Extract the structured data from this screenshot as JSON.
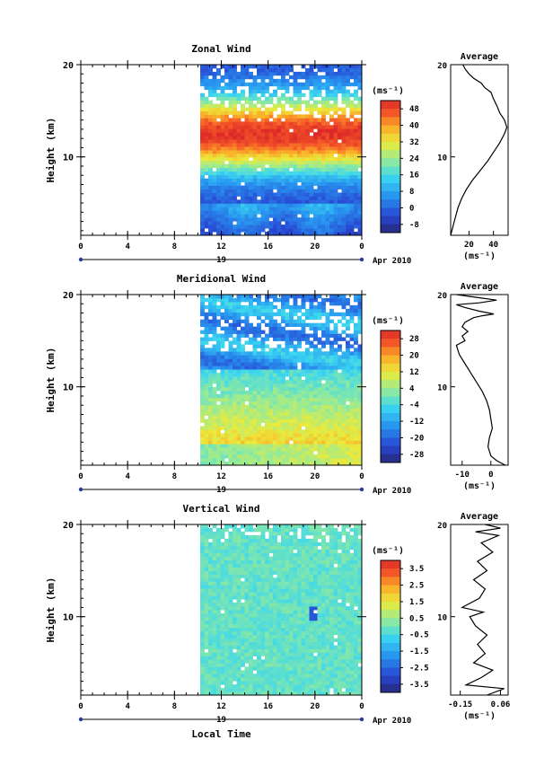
{
  "chart_data": [
    {
      "type": "heatmap",
      "title": "Zonal Wind",
      "ylabel": "Height (km)",
      "units": "(ms⁻¹)",
      "y_ticks": [
        "20",
        "10"
      ],
      "x_ticks": [
        "0",
        "4",
        "8",
        "12",
        "16",
        "20",
        "0"
      ],
      "date_label": "19",
      "month_label": "Apr 2010",
      "xlim": [
        0,
        24
      ],
      "ylim": [
        1.5,
        20
      ],
      "colorbar_ticks": [
        "48",
        "40",
        "32",
        "24",
        "16",
        "8",
        "0",
        "-8"
      ],
      "colorbar_range": [
        -12,
        52
      ],
      "data_start_hour": 10.2,
      "profile": {
        "title": "Average",
        "y_ticks": [
          "20",
          "10"
        ],
        "x_ticks": [
          "20",
          "40"
        ],
        "xlabel": "(ms⁻¹)",
        "xlim": [
          5,
          52
        ],
        "points": [
          [
            5,
            1.5
          ],
          [
            7,
            2.5
          ],
          [
            9,
            3.5
          ],
          [
            11,
            4.5
          ],
          [
            14,
            5.5
          ],
          [
            18,
            6.5
          ],
          [
            23,
            7.5
          ],
          [
            29,
            8.5
          ],
          [
            35,
            9.5
          ],
          [
            40,
            10.5
          ],
          [
            45,
            11.5
          ],
          [
            49,
            12.5
          ],
          [
            51,
            13.2
          ],
          [
            49,
            14
          ],
          [
            45,
            14.8
          ],
          [
            43,
            15.5
          ],
          [
            40,
            16.3
          ],
          [
            38,
            17
          ],
          [
            33,
            17.5
          ],
          [
            30,
            18
          ],
          [
            24,
            18.5
          ],
          [
            20,
            19
          ],
          [
            17,
            19.5
          ],
          [
            15,
            20
          ]
        ]
      }
    },
    {
      "type": "heatmap",
      "title": "Meridional Wind",
      "ylabel": "Height (km)",
      "units": "(ms⁻¹)",
      "y_ticks": [
        "20",
        "10"
      ],
      "x_ticks": [
        "0",
        "4",
        "8",
        "12",
        "16",
        "20",
        "0"
      ],
      "date_label": "19",
      "month_label": "Apr 2010",
      "xlim": [
        0,
        24
      ],
      "ylim": [
        1.5,
        20
      ],
      "colorbar_ticks": [
        "28",
        "20",
        "12",
        "4",
        "-4",
        "-12",
        "-20",
        "-28"
      ],
      "colorbar_range": [
        -32,
        32
      ],
      "data_start_hour": 10.2,
      "profile": {
        "title": "Average",
        "y_ticks": [
          "20",
          "10"
        ],
        "x_ticks": [
          "-10",
          "0"
        ],
        "xlabel": "(ms⁻¹)",
        "xlim": [
          -14,
          6
        ],
        "points": [
          [
            5,
            1.5
          ],
          [
            2,
            2
          ],
          [
            0,
            2.5
          ],
          [
            -1,
            3.5
          ],
          [
            -0.5,
            4.5
          ],
          [
            0.5,
            5.5
          ],
          [
            0,
            6.5
          ],
          [
            -0.5,
            7.5
          ],
          [
            -1.5,
            8.5
          ],
          [
            -3,
            9.5
          ],
          [
            -5,
            10.5
          ],
          [
            -7,
            11.5
          ],
          [
            -9,
            12.5
          ],
          [
            -11,
            13.5
          ],
          [
            -12,
            14.5
          ],
          [
            -9,
            15
          ],
          [
            -10,
            15.5
          ],
          [
            -8,
            16
          ],
          [
            -10,
            16.5
          ],
          [
            -9,
            17
          ],
          [
            -6,
            17.5
          ],
          [
            -3,
            17.7
          ],
          [
            1,
            17.9
          ],
          [
            -4,
            18.2
          ],
          [
            -9,
            18.6
          ],
          [
            -12,
            18.9
          ],
          [
            -4,
            19.1
          ],
          [
            2,
            19.4
          ],
          [
            -5,
            19.7
          ],
          [
            -12,
            20
          ]
        ]
      }
    },
    {
      "type": "heatmap",
      "title": "Vertical Wind",
      "ylabel": "Height (km)",
      "xlabel": "Local Time",
      "units": "(ms⁻¹)",
      "y_ticks": [
        "20",
        "10"
      ],
      "x_ticks": [
        "0",
        "4",
        "8",
        "12",
        "16",
        "20",
        "0"
      ],
      "date_label": "19",
      "month_label": "Apr 2010",
      "xlim": [
        0,
        24
      ],
      "ylim": [
        1.5,
        20
      ],
      "colorbar_ticks": [
        "3.5",
        "2.5",
        "1.5",
        "0.5",
        "-0.5",
        "-1.5",
        "-2.5",
        "-3.5"
      ],
      "colorbar_range": [
        -4,
        4
      ],
      "data_start_hour": 10.2,
      "profile": {
        "title": "Average",
        "y_ticks": [
          "20",
          "10"
        ],
        "x_ticks": [
          "-0.15",
          "0.06"
        ],
        "xlabel": "(ms⁻¹)",
        "xlim": [
          -0.2,
          0.1
        ],
        "points": [
          [
            -0.01,
            1.5
          ],
          [
            0.08,
            2.2
          ],
          [
            -0.12,
            2.6
          ],
          [
            -0.04,
            3.4
          ],
          [
            0.02,
            4.2
          ],
          [
            -0.08,
            5
          ],
          [
            -0.02,
            6
          ],
          [
            -0.06,
            7
          ],
          [
            -0.01,
            8
          ],
          [
            -0.07,
            9
          ],
          [
            -0.1,
            10
          ],
          [
            -0.03,
            10.5
          ],
          [
            -0.14,
            11
          ],
          [
            -0.05,
            12
          ],
          [
            -0.02,
            13
          ],
          [
            -0.08,
            14
          ],
          [
            -0.01,
            15
          ],
          [
            -0.06,
            16
          ],
          [
            0.02,
            17
          ],
          [
            -0.04,
            18
          ],
          [
            0.05,
            18.8
          ],
          [
            -0.07,
            19.2
          ],
          [
            0.06,
            19.6
          ],
          [
            -0.02,
            20
          ]
        ]
      }
    }
  ]
}
